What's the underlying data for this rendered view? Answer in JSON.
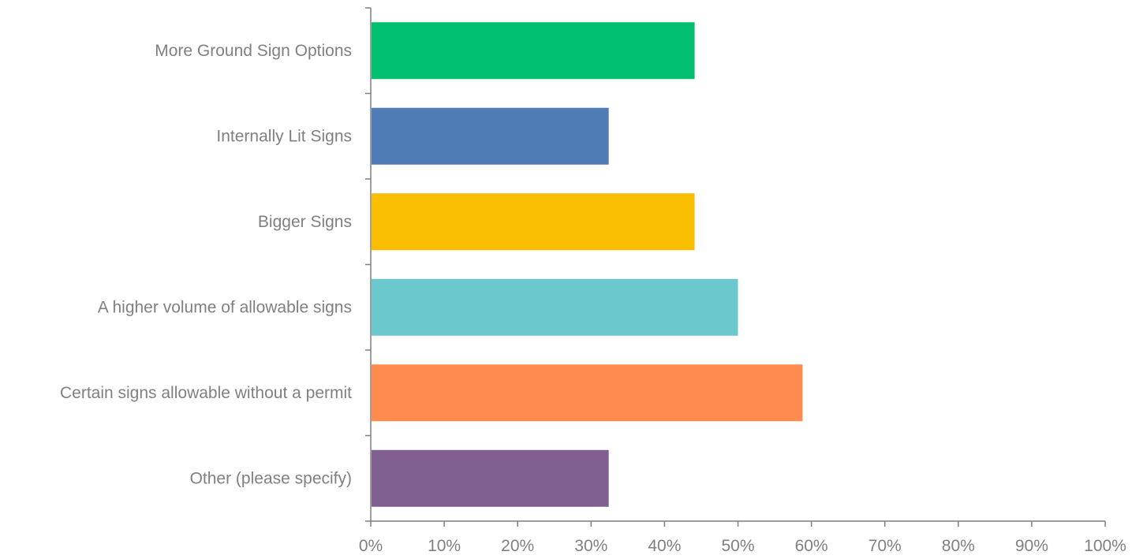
{
  "chart_data": {
    "type": "bar",
    "orientation": "horizontal",
    "categories": [
      "More Ground Sign Options",
      "Internally Lit Signs",
      "Bigger Signs",
      "A higher volume of allowable signs",
      "Certain signs allowable without a permit",
      "Other (please specify)"
    ],
    "values": [
      44.1,
      32.4,
      44.1,
      50.0,
      58.8,
      32.4
    ],
    "colors": [
      "#00bf6f",
      "#507cb6",
      "#f9be00",
      "#6bc8cd",
      "#ff8b4f",
      "#7f5f90"
    ],
    "xlim": [
      0,
      100
    ],
    "x_ticks": [
      "0%",
      "10%",
      "20%",
      "30%",
      "40%",
      "50%",
      "60%",
      "70%",
      "80%",
      "90%",
      "100%"
    ],
    "grid": false,
    "legend": "none",
    "title": "",
    "xlabel": "",
    "ylabel": ""
  }
}
